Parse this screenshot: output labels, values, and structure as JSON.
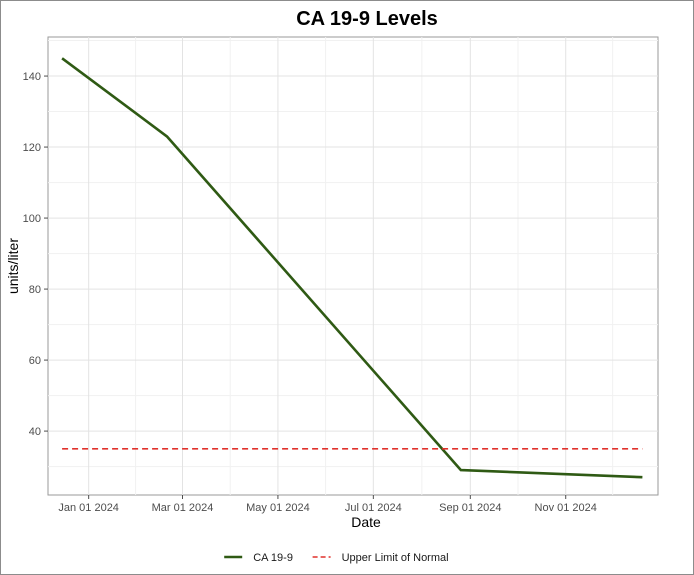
{
  "chart_data": {
    "type": "line",
    "title": "CA 19-9 Levels",
    "xlabel": "Date",
    "ylabel": "units/liter",
    "x_axis_type": "date",
    "xlim": [
      "2023-12-06",
      "2024-12-30"
    ],
    "ylim": [
      22,
      151
    ],
    "grid": true,
    "legend_position": "bottom",
    "x_ticks": [
      {
        "date": "2024-01-01",
        "label": "Jan 01 2024"
      },
      {
        "date": "2024-03-01",
        "label": "Mar 01 2024"
      },
      {
        "date": "2024-05-01",
        "label": "May 01 2024"
      },
      {
        "date": "2024-07-01",
        "label": "Jul 01 2024"
      },
      {
        "date": "2024-09-01",
        "label": "Sep 01 2024"
      },
      {
        "date": "2024-11-01",
        "label": "Nov 01 2024"
      }
    ],
    "y_ticks": [
      40,
      60,
      80,
      100,
      120,
      140
    ],
    "series": [
      {
        "name": "CA 19-9",
        "color": "#2f5a14",
        "style": "solid",
        "x": [
          "2023-12-15",
          "2024-02-20",
          "2024-08-26",
          "2024-12-20"
        ],
        "y": [
          145,
          123,
          29,
          27
        ]
      },
      {
        "name": "Upper Limit of Normal",
        "color": "#e0312b",
        "style": "dashed",
        "x": [
          "2023-12-15",
          "2024-12-20"
        ],
        "y": [
          35,
          35
        ]
      }
    ]
  }
}
